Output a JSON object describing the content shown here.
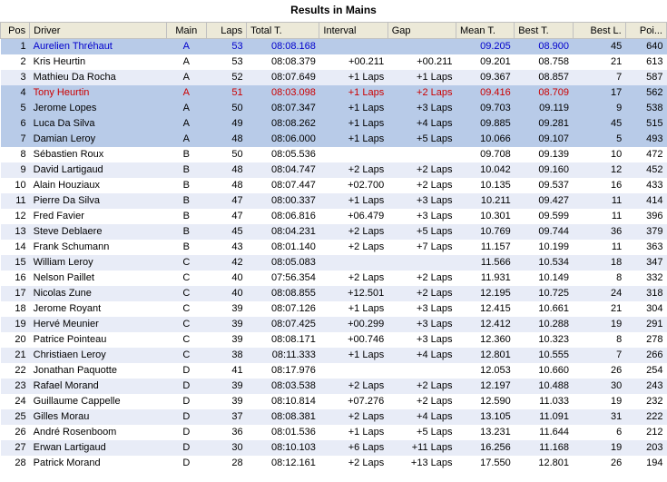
{
  "title": "Results in Mains",
  "columns": [
    "Pos",
    "Driver",
    "Main",
    "Laps",
    "Total T.",
    "Interval",
    "Gap",
    "Mean T.",
    "Best T.",
    "Best L.",
    "Poi..."
  ],
  "rows": [
    {
      "pos": 1,
      "driver": "Aurelien Thréhaut",
      "main": "A",
      "laps": 53,
      "total": "08:08.168",
      "interval": "",
      "gap": "",
      "mean": "09.205",
      "best": "08.900",
      "bestl": 45,
      "poi": 640,
      "hl": "sel",
      "blue": true
    },
    {
      "pos": 2,
      "driver": "Kris Heurtin",
      "main": "A",
      "laps": 53,
      "total": "08:08.379",
      "interval": "+00.211",
      "gap": "+00.211",
      "mean": "09.201",
      "best": "08.758",
      "bestl": 21,
      "poi": 613
    },
    {
      "pos": 3,
      "driver": "Mathieu Da Rocha",
      "main": "A",
      "laps": 52,
      "total": "08:07.649",
      "interval": "+1 Laps",
      "gap": "+1 Laps",
      "mean": "09.367",
      "best": "08.857",
      "bestl": 7,
      "poi": 587
    },
    {
      "pos": 4,
      "driver": "Tony Heurtin",
      "main": "A",
      "laps": 51,
      "total": "08:03.098",
      "interval": "+1 Laps",
      "gap": "+2 Laps",
      "mean": "09.416",
      "best": "08.709",
      "bestl": 17,
      "poi": 562,
      "red": true,
      "hl": "sel"
    },
    {
      "pos": 5,
      "driver": "Jerome Lopes",
      "main": "A",
      "laps": 50,
      "total": "08:07.347",
      "interval": "+1 Laps",
      "gap": "+3 Laps",
      "mean": "09.703",
      "best": "09.119",
      "bestl": 9,
      "poi": 538,
      "hl": "sel"
    },
    {
      "pos": 6,
      "driver": "Luca Da Silva",
      "main": "A",
      "laps": 49,
      "total": "08:08.262",
      "interval": "+1 Laps",
      "gap": "+4 Laps",
      "mean": "09.885",
      "best": "09.281",
      "bestl": 45,
      "poi": 515,
      "hl": "sel"
    },
    {
      "pos": 7,
      "driver": "Damian Leroy",
      "main": "A",
      "laps": 48,
      "total": "08:06.000",
      "interval": "+1 Laps",
      "gap": "+5 Laps",
      "mean": "10.066",
      "best": "09.107",
      "bestl": 5,
      "poi": 493,
      "hl": "sel"
    },
    {
      "pos": 8,
      "driver": "Sébastien Roux",
      "main": "B",
      "laps": 50,
      "total": "08:05.536",
      "interval": "",
      "gap": "",
      "mean": "09.708",
      "best": "09.139",
      "bestl": 10,
      "poi": 472
    },
    {
      "pos": 9,
      "driver": "David Lartigaud",
      "main": "B",
      "laps": 48,
      "total": "08:04.747",
      "interval": "+2 Laps",
      "gap": "+2 Laps",
      "mean": "10.042",
      "best": "09.160",
      "bestl": 12,
      "poi": 452
    },
    {
      "pos": 10,
      "driver": "Alain Houziaux",
      "main": "B",
      "laps": 48,
      "total": "08:07.447",
      "interval": "+02.700",
      "gap": "+2 Laps",
      "mean": "10.135",
      "best": "09.537",
      "bestl": 16,
      "poi": 433
    },
    {
      "pos": 11,
      "driver": "Pierre Da Silva",
      "main": "B",
      "laps": 47,
      "total": "08:00.337",
      "interval": "+1 Laps",
      "gap": "+3 Laps",
      "mean": "10.211",
      "best": "09.427",
      "bestl": 11,
      "poi": 414
    },
    {
      "pos": 12,
      "driver": "Fred Favier",
      "main": "B",
      "laps": 47,
      "total": "08:06.816",
      "interval": "+06.479",
      "gap": "+3 Laps",
      "mean": "10.301",
      "best": "09.599",
      "bestl": 11,
      "poi": 396
    },
    {
      "pos": 13,
      "driver": "Steve Deblaere",
      "main": "B",
      "laps": 45,
      "total": "08:04.231",
      "interval": "+2 Laps",
      "gap": "+5 Laps",
      "mean": "10.769",
      "best": "09.744",
      "bestl": 36,
      "poi": 379
    },
    {
      "pos": 14,
      "driver": "Frank Schumann",
      "main": "B",
      "laps": 43,
      "total": "08:01.140",
      "interval": "+2 Laps",
      "gap": "+7 Laps",
      "mean": "11.157",
      "best": "10.199",
      "bestl": 11,
      "poi": 363
    },
    {
      "pos": 15,
      "driver": "William Leroy",
      "main": "C",
      "laps": 42,
      "total": "08:05.083",
      "interval": "",
      "gap": "",
      "mean": "11.566",
      "best": "10.534",
      "bestl": 18,
      "poi": 347
    },
    {
      "pos": 16,
      "driver": "Nelson Paillet",
      "main": "C",
      "laps": 40,
      "total": "07:56.354",
      "interval": "+2 Laps",
      "gap": "+2 Laps",
      "mean": "11.931",
      "best": "10.149",
      "bestl": 8,
      "poi": 332
    },
    {
      "pos": 17,
      "driver": "Nicolas Zune",
      "main": "C",
      "laps": 40,
      "total": "08:08.855",
      "interval": "+12.501",
      "gap": "+2 Laps",
      "mean": "12.195",
      "best": "10.725",
      "bestl": 24,
      "poi": 318
    },
    {
      "pos": 18,
      "driver": "Jerome Royant",
      "main": "C",
      "laps": 39,
      "total": "08:07.126",
      "interval": "+1 Laps",
      "gap": "+3 Laps",
      "mean": "12.415",
      "best": "10.661",
      "bestl": 21,
      "poi": 304
    },
    {
      "pos": 19,
      "driver": "Hervé Meunier",
      "main": "C",
      "laps": 39,
      "total": "08:07.425",
      "interval": "+00.299",
      "gap": "+3 Laps",
      "mean": "12.412",
      "best": "10.288",
      "bestl": 19,
      "poi": 291
    },
    {
      "pos": 20,
      "driver": "Patrice Pointeau",
      "main": "C",
      "laps": 39,
      "total": "08:08.171",
      "interval": "+00.746",
      "gap": "+3 Laps",
      "mean": "12.360",
      "best": "10.323",
      "bestl": 8,
      "poi": 278
    },
    {
      "pos": 21,
      "driver": "Christiaen Leroy",
      "main": "C",
      "laps": 38,
      "total": "08:11.333",
      "interval": "+1 Laps",
      "gap": "+4 Laps",
      "mean": "12.801",
      "best": "10.555",
      "bestl": 7,
      "poi": 266
    },
    {
      "pos": 22,
      "driver": "Jonathan Paquotte",
      "main": "D",
      "laps": 41,
      "total": "08:17.976",
      "interval": "",
      "gap": "",
      "mean": "12.053",
      "best": "10.660",
      "bestl": 26,
      "poi": 254
    },
    {
      "pos": 23,
      "driver": "Rafael Morand",
      "main": "D",
      "laps": 39,
      "total": "08:03.538",
      "interval": "+2 Laps",
      "gap": "+2 Laps",
      "mean": "12.197",
      "best": "10.488",
      "bestl": 30,
      "poi": 243
    },
    {
      "pos": 24,
      "driver": "Guillaume Cappelle",
      "main": "D",
      "laps": 39,
      "total": "08:10.814",
      "interval": "+07.276",
      "gap": "+2 Laps",
      "mean": "12.590",
      "best": "11.033",
      "bestl": 19,
      "poi": 232
    },
    {
      "pos": 25,
      "driver": "Gilles Morau",
      "main": "D",
      "laps": 37,
      "total": "08:08.381",
      "interval": "+2 Laps",
      "gap": "+4 Laps",
      "mean": "13.105",
      "best": "11.091",
      "bestl": 31,
      "poi": 222
    },
    {
      "pos": 26,
      "driver": "André Rosenboom",
      "main": "D",
      "laps": 36,
      "total": "08:01.536",
      "interval": "+1 Laps",
      "gap": "+5 Laps",
      "mean": "13.231",
      "best": "11.644",
      "bestl": 6,
      "poi": 212
    },
    {
      "pos": 27,
      "driver": "Erwan Lartigaud",
      "main": "D",
      "laps": 30,
      "total": "08:10.103",
      "interval": "+6 Laps",
      "gap": "+11 Laps",
      "mean": "16.256",
      "best": "11.168",
      "bestl": 19,
      "poi": 203
    },
    {
      "pos": 28,
      "driver": "Patrick Morand",
      "main": "D",
      "laps": 28,
      "total": "08:12.161",
      "interval": "+2 Laps",
      "gap": "+13 Laps",
      "mean": "17.550",
      "best": "12.801",
      "bestl": 26,
      "poi": 194
    }
  ]
}
